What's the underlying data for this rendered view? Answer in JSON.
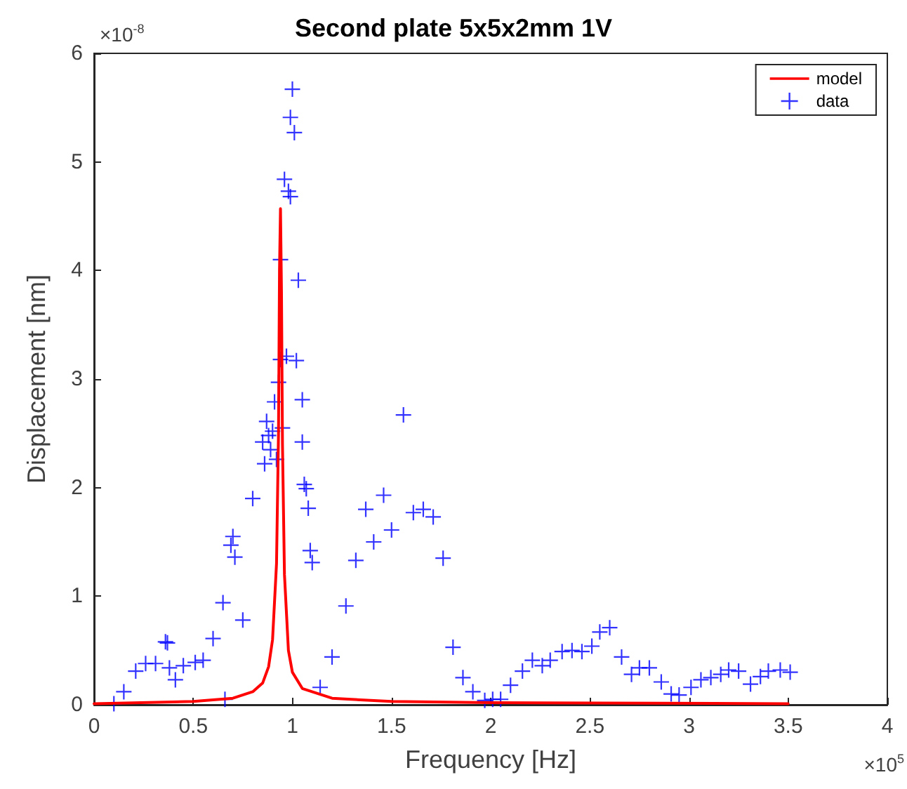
{
  "chart_data": {
    "type": "line",
    "title": "Second plate 5x5x2mm 1V",
    "xlabel": "Frequency [Hz]",
    "ylabel": "Displacement [nm]",
    "annotations": [
      "×10$^{-8}$",
      "×10$^{5}$"
    ],
    "xlim": [
      0,
      4
    ],
    "xticks": [
      0,
      0.5,
      1,
      1.5,
      2,
      2.5,
      3,
      3.5,
      4
    ],
    "ylim": [
      0,
      6
    ],
    "yticks": [
      0,
      1,
      2,
      3,
      4,
      5,
      6
    ],
    "grid": false,
    "legend": "top right",
    "series": [
      {
        "name": "model",
        "color": "#ff0000",
        "marker": "none",
        "line_style": "solid",
        "x": [
          0,
          0.5,
          0.7,
          0.8,
          0.85,
          0.88,
          0.9,
          0.92,
          0.93,
          0.935,
          0.94,
          0.945,
          0.95,
          0.96,
          0.98,
          1.0,
          1.05,
          1.2,
          1.5,
          2,
          3.5
        ],
        "values": [
          0.01,
          0.03,
          0.06,
          0.12,
          0.2,
          0.35,
          0.6,
          1.3,
          2.5,
          4.0,
          4.57,
          3.8,
          2.4,
          1.2,
          0.5,
          0.3,
          0.15,
          0.06,
          0.03,
          0.02,
          0.01
        ]
      },
      {
        "name": "data",
        "type": "scatter",
        "color": "#0000ff",
        "marker": "cross",
        "x": [
          0.1,
          0.15,
          0.21,
          0.26,
          0.31,
          0.36,
          0.37,
          0.38,
          0.41,
          0.45,
          0.51,
          0.55,
          0.6,
          0.65,
          0.66,
          0.69,
          0.7,
          0.71,
          0.75,
          0.8,
          0.86,
          0.85,
          0.87,
          0.88,
          0.9,
          0.89,
          0.92,
          0.95,
          0.91,
          0.93,
          0.97,
          0.94,
          0.94,
          0.96,
          0.98,
          0.99,
          1.0,
          0.99,
          1.01,
          1.03,
          1.02,
          1.05,
          1.05,
          1.06,
          1.07,
          1.08,
          1.09,
          1.1,
          1.14,
          1.2,
          1.27,
          1.32,
          1.37,
          1.41,
          1.46,
          1.5,
          1.56,
          1.61,
          1.66,
          1.71,
          1.76,
          1.81,
          1.86,
          1.91,
          1.97,
          2.01,
          2.05,
          2.1,
          2.16,
          2.21,
          2.26,
          2.3,
          2.36,
          2.41,
          2.46,
          2.51,
          2.55,
          2.6,
          2.66,
          2.71,
          2.75,
          2.8,
          2.86,
          2.91,
          2.95,
          3.01,
          3.06,
          3.11,
          3.16,
          3.2,
          3.25,
          3.31,
          3.36,
          3.4,
          3.46,
          3.51
        ],
        "values": [
          0.01,
          0.12,
          0.31,
          0.38,
          0.38,
          0.58,
          0.57,
          0.34,
          0.23,
          0.36,
          0.39,
          0.41,
          0.61,
          0.94,
          0.05,
          1.47,
          1.55,
          1.36,
          0.78,
          1.9,
          2.22,
          2.42,
          2.61,
          2.48,
          2.52,
          2.35,
          2.26,
          2.55,
          2.79,
          2.97,
          3.21,
          3.18,
          4.1,
          4.84,
          4.73,
          4.68,
          5.67,
          5.41,
          5.27,
          3.91,
          3.17,
          2.81,
          2.42,
          2.03,
          1.99,
          1.81,
          1.42,
          1.31,
          0.16,
          0.44,
          0.91,
          1.33,
          1.8,
          1.5,
          1.93,
          1.61,
          2.67,
          1.77,
          1.8,
          1.73,
          1.35,
          0.53,
          0.25,
          0.12,
          0.04,
          0.05,
          0.05,
          0.18,
          0.31,
          0.41,
          0.36,
          0.41,
          0.49,
          0.5,
          0.49,
          0.54,
          0.67,
          0.71,
          0.44,
          0.28,
          0.34,
          0.34,
          0.21,
          0.1,
          0.09,
          0.16,
          0.23,
          0.25,
          0.28,
          0.32,
          0.31,
          0.19,
          0.26,
          0.31,
          0.32,
          0.3
        ]
      }
    ]
  }
}
